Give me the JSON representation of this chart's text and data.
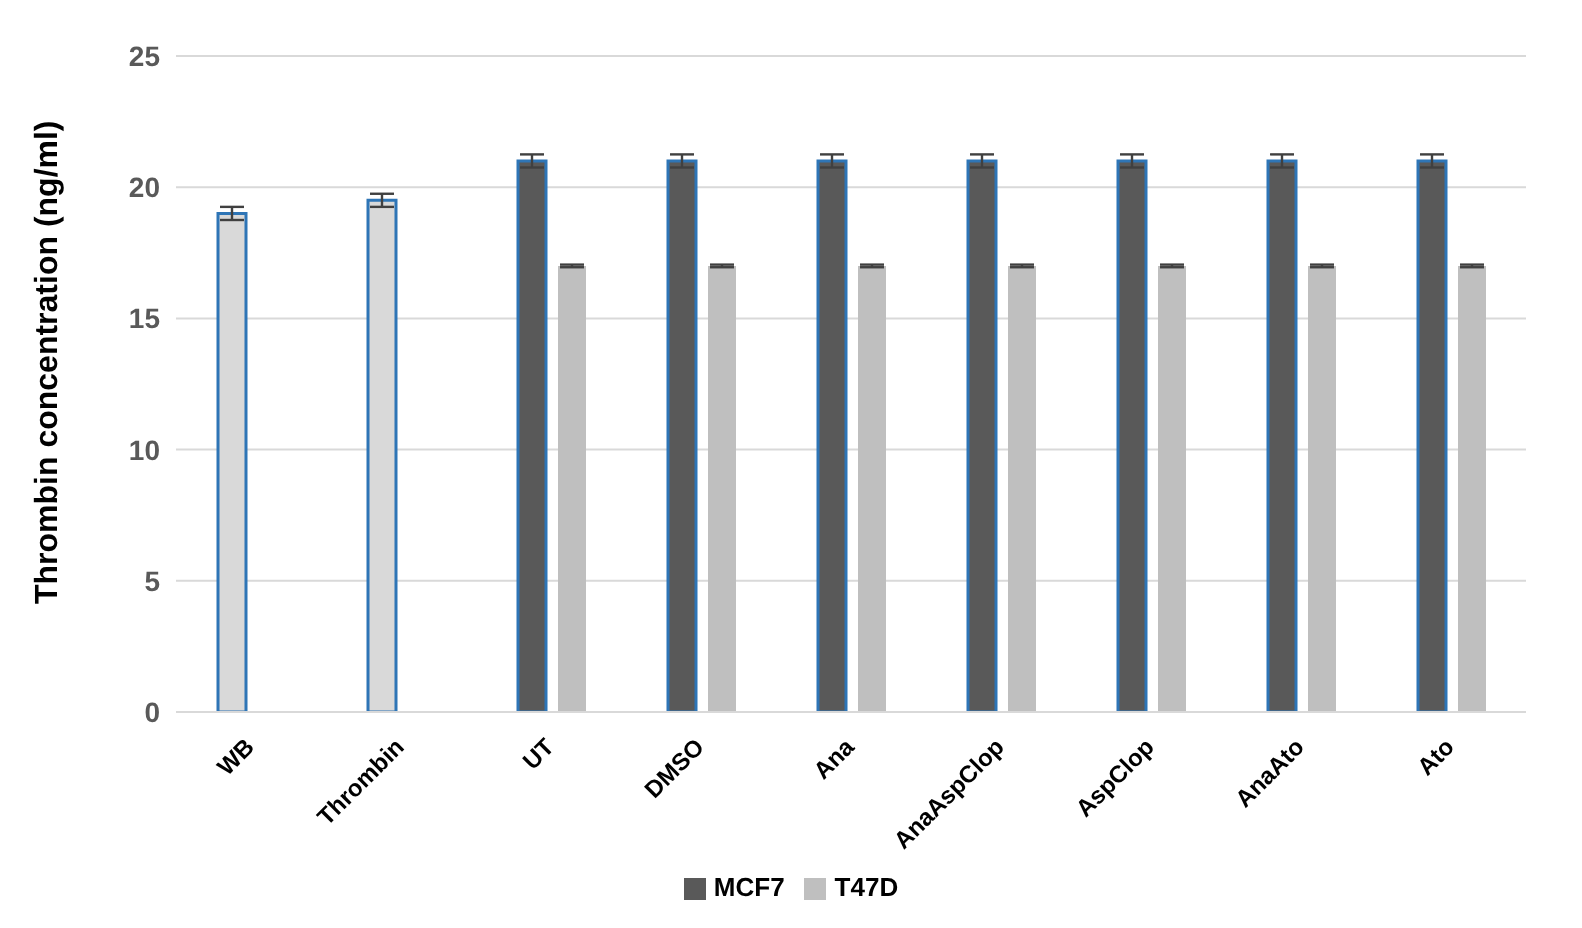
{
  "chart_data": {
    "type": "bar",
    "ylabel": "Thrombin concentration (ng/ml)",
    "categories": [
      "WB",
      "Thrombin",
      "UT",
      "DMSO",
      "Ana",
      "AnaAspClop",
      "AspClop",
      "AnaAto",
      "Ato"
    ],
    "series": [
      {
        "name": "MCF7",
        "color": "#595959",
        "colors": [
          "#d9d9d9",
          "#d9d9d9",
          "#595959",
          "#595959",
          "#595959",
          "#595959",
          "#595959",
          "#595959",
          "#595959"
        ],
        "values": [
          19,
          19.5,
          21,
          21,
          21,
          21,
          21,
          21,
          21
        ],
        "errors": [
          0.25,
          0.25,
          0.25,
          0.25,
          0.25,
          0.25,
          0.25,
          0.25,
          0.25
        ]
      },
      {
        "name": "T47D",
        "color": "#bfbfbf",
        "values": [
          null,
          null,
          17,
          17,
          17,
          17,
          17,
          17,
          17
        ],
        "errors": [
          null,
          null,
          0.05,
          0.05,
          0.05,
          0.05,
          0.05,
          0.05,
          0.05
        ]
      }
    ],
    "ylim": [
      0,
      25
    ],
    "yticks": [
      0,
      5,
      10,
      15,
      20,
      25
    ],
    "grid": "y",
    "legend": "bottom"
  }
}
